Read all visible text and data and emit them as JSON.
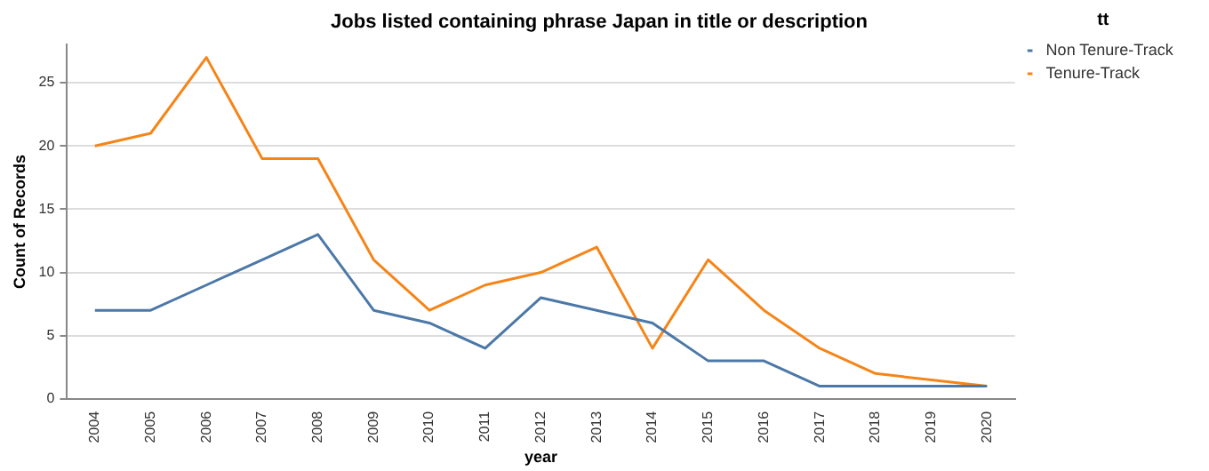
{
  "chart_data": {
    "type": "line",
    "title": "Jobs listed containing phrase Japan in title or description",
    "xlabel": "year",
    "ylabel": "Count of Records",
    "legend_title": "tt",
    "categories": [
      "2004",
      "2005",
      "2006",
      "2007",
      "2008",
      "2009",
      "2010",
      "2011",
      "2012",
      "2013",
      "2014",
      "2015",
      "2016",
      "2017",
      "2018",
      "2019",
      "2020"
    ],
    "series": [
      {
        "name": "Non Tenure-Track",
        "color": "#4c78a8",
        "values": [
          7,
          7,
          9,
          11,
          13,
          7,
          6,
          4,
          8,
          7,
          6,
          3,
          3,
          1,
          1,
          1,
          1
        ]
      },
      {
        "name": "Tenure-Track",
        "color": "#f58518",
        "values": [
          20,
          21,
          27,
          19,
          19,
          11,
          7,
          9,
          10,
          12,
          4,
          11,
          7,
          4,
          2,
          1.5,
          1
        ]
      }
    ],
    "ylim": [
      0,
      28
    ],
    "yticks": [
      0,
      5,
      10,
      15,
      20,
      25
    ],
    "grid": "y",
    "legend": "top right",
    "marker": "none",
    "line_style": "solid"
  }
}
